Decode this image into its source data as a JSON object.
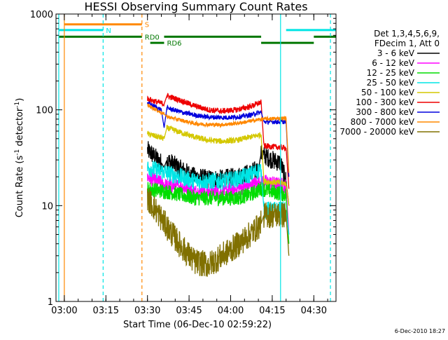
{
  "chart_data": {
    "type": "line",
    "title": "HESSI Observing Summary Count Rates",
    "xlabel": "Start Time (06-Dec-10 02:59:22)",
    "ylabel_main": "Count Rate (s",
    "ylabel_sup1": "-1",
    "ylabel_mid": " detector",
    "ylabel_sup2": "-1",
    "ylabel_end": ")",
    "date_stamp": "6-Dec-2010 18:27",
    "y_scale": "log",
    "ylim": [
      1,
      1000
    ],
    "xlim": [
      "02:57",
      "04:38"
    ],
    "y_ticks": [
      {
        "value": 1,
        "label": "1"
      },
      {
        "value": 10,
        "label": "10"
      },
      {
        "value": 100,
        "label": "100"
      },
      {
        "value": 1000,
        "label": "1000"
      }
    ],
    "x_ticks": [
      {
        "t": "03:00",
        "label": "03:00"
      },
      {
        "t": "03:15",
        "label": "03:15"
      },
      {
        "t": "03:30",
        "label": "03:30"
      },
      {
        "t": "03:45",
        "label": "03:45"
      },
      {
        "t": "04:00",
        "label": "04:00"
      },
      {
        "t": "04:15",
        "label": "04:15"
      },
      {
        "t": "04:30",
        "label": "04:30"
      }
    ],
    "legend": {
      "header": [
        "Det 1,3,4,5,6,9,",
        "FDecim 1, Att 0"
      ],
      "entries": [
        {
          "label": "3 - 6 keV",
          "color": "#000000"
        },
        {
          "label": "6 - 12 keV",
          "color": "#ff00ff"
        },
        {
          "label": "12 - 25 keV",
          "color": "#00dd00"
        },
        {
          "label": "25 - 50 keV",
          "color": "#00e5e5"
        },
        {
          "label": "50 - 100 keV",
          "color": "#d4c800"
        },
        {
          "label": "100 - 300 keV",
          "color": "#ee0000"
        },
        {
          "label": "300 - 800 keV",
          "color": "#0000dd"
        },
        {
          "label": "800 - 7000 keV",
          "color": "#ff8800"
        },
        {
          "label": "7000 - 20000 keV",
          "color": "#807000"
        }
      ]
    },
    "flag_lines": [
      {
        "label": "S",
        "color": "#ff8800",
        "y": 780,
        "t0": "03:00",
        "t1": "03:28"
      },
      {
        "label": "N",
        "color": "#00e5e5",
        "y": 680,
        "t0": "02:58",
        "t1": "03:14"
      },
      {
        "label": "",
        "color": "#00e5e5",
        "y": 680,
        "t0": "04:20",
        "t1": "04:38"
      },
      {
        "label": "RD0",
        "color": "#007700",
        "y": 580,
        "t0": "02:58",
        "t1": "03:28"
      },
      {
        "label": "",
        "color": "#007700",
        "y": 580,
        "t0": "03:36",
        "t1": "04:11"
      },
      {
        "label": "",
        "color": "#007700",
        "y": 580,
        "t0": "04:30",
        "t1": "04:38"
      },
      {
        "label": "RD6",
        "color": "#007700",
        "y": 500,
        "t0": "03:31",
        "t1": "03:36"
      },
      {
        "label": "",
        "color": "#007700",
        "y": 500,
        "t0": "04:11",
        "t1": "04:30"
      }
    ],
    "vlines": [
      {
        "t": "02:58",
        "color": "#00e5e5",
        "style": "solid"
      },
      {
        "t": "03:00",
        "color": "#ff8800",
        "style": "solid"
      },
      {
        "t": "03:14",
        "color": "#00e5e5",
        "style": "dashed"
      },
      {
        "t": "03:28",
        "color": "#ff8800",
        "style": "dashed"
      },
      {
        "t": "04:18",
        "color": "#00e5e5",
        "style": "solid"
      },
      {
        "t": "04:36",
        "color": "#00e5e5",
        "style": "dashed"
      }
    ],
    "series": [
      {
        "name": "3 - 6 keV",
        "color": "#000000",
        "noise": 0.1,
        "points": [
          [
            "03:30",
            38
          ],
          [
            "03:35",
            28
          ],
          [
            "03:36",
            25
          ],
          [
            "03:37",
            30
          ],
          [
            "03:42",
            24
          ],
          [
            "03:47",
            20
          ],
          [
            "03:52",
            19
          ],
          [
            "03:57",
            19
          ],
          [
            "04:02",
            20
          ],
          [
            "04:07",
            22
          ],
          [
            "04:10",
            24
          ],
          [
            "04:11",
            35
          ],
          [
            "04:15",
            30
          ],
          [
            "04:18",
            28
          ],
          [
            "04:20",
            18
          ],
          [
            "04:21",
            10
          ]
        ]
      },
      {
        "name": "6 - 12 keV",
        "color": "#ff00ff",
        "noise": 0.08,
        "points": [
          [
            "03:30",
            20
          ],
          [
            "03:37",
            16
          ],
          [
            "03:42",
            16
          ],
          [
            "03:47",
            14
          ],
          [
            "03:52",
            14
          ],
          [
            "03:57",
            14
          ],
          [
            "04:02",
            15
          ],
          [
            "04:07",
            16
          ],
          [
            "04:11",
            18
          ],
          [
            "04:15",
            17
          ],
          [
            "04:20",
            16
          ],
          [
            "04:21",
            5
          ]
        ]
      },
      {
        "name": "12 - 25 keV",
        "color": "#00dd00",
        "noise": 0.08,
        "points": [
          [
            "03:30",
            15
          ],
          [
            "03:37",
            14
          ],
          [
            "03:42",
            13
          ],
          [
            "03:47",
            12
          ],
          [
            "03:52",
            12
          ],
          [
            "03:57",
            12
          ],
          [
            "04:02",
            12
          ],
          [
            "04:07",
            13
          ],
          [
            "04:11",
            15
          ],
          [
            "04:15",
            14
          ],
          [
            "04:20",
            13
          ],
          [
            "04:21",
            4
          ]
        ]
      },
      {
        "name": "25 - 50 keV",
        "color": "#00e5e5",
        "noise": 0.09,
        "points": [
          [
            "03:30",
            25
          ],
          [
            "03:37",
            22
          ],
          [
            "03:42",
            20
          ],
          [
            "03:47",
            18
          ],
          [
            "03:52",
            18
          ],
          [
            "03:57",
            18
          ],
          [
            "04:02",
            19
          ],
          [
            "04:07",
            21
          ],
          [
            "04:11",
            24
          ],
          [
            "04:12",
            9
          ],
          [
            "04:20",
            9
          ],
          [
            "04:21",
            5
          ]
        ]
      },
      {
        "name": "50 - 100 keV",
        "color": "#d4c800",
        "noise": 0.03,
        "points": [
          [
            "03:30",
            56
          ],
          [
            "03:36",
            50
          ],
          [
            "03:37",
            65
          ],
          [
            "03:42",
            58
          ],
          [
            "03:47",
            52
          ],
          [
            "03:52",
            48
          ],
          [
            "03:57",
            47
          ],
          [
            "04:02",
            48
          ],
          [
            "04:07",
            52
          ],
          [
            "04:11",
            55
          ],
          [
            "04:12",
            18
          ],
          [
            "04:20",
            17
          ],
          [
            "04:21",
            10
          ]
        ]
      },
      {
        "name": "100 - 300 keV",
        "color": "#ee0000",
        "noise": 0.03,
        "points": [
          [
            "03:30",
            130
          ],
          [
            "03:36",
            115
          ],
          [
            "03:37",
            140
          ],
          [
            "03:42",
            125
          ],
          [
            "03:47",
            110
          ],
          [
            "03:52",
            100
          ],
          [
            "03:57",
            97
          ],
          [
            "04:02",
            100
          ],
          [
            "04:07",
            108
          ],
          [
            "04:11",
            120
          ],
          [
            "04:12",
            42
          ],
          [
            "04:20",
            40
          ],
          [
            "04:21",
            15
          ]
        ]
      },
      {
        "name": "300 - 800 keV",
        "color": "#0000dd",
        "noise": 0.025,
        "points": [
          [
            "03:30",
            118
          ],
          [
            "03:35",
            100
          ],
          [
            "03:36",
            65
          ],
          [
            "03:37",
            105
          ],
          [
            "03:42",
            95
          ],
          [
            "03:47",
            88
          ],
          [
            "03:52",
            84
          ],
          [
            "03:57",
            83
          ],
          [
            "04:02",
            84
          ],
          [
            "04:07",
            88
          ],
          [
            "04:11",
            95
          ],
          [
            "04:12",
            75
          ],
          [
            "04:20",
            75
          ],
          [
            "04:21",
            20
          ]
        ]
      },
      {
        "name": "800 - 7000 keV",
        "color": "#ff8800",
        "noise": 0.02,
        "points": [
          [
            "03:30",
            112
          ],
          [
            "03:36",
            90
          ],
          [
            "03:37",
            85
          ],
          [
            "03:42",
            78
          ],
          [
            "03:47",
            72
          ],
          [
            "03:52",
            70
          ],
          [
            "03:57",
            70
          ],
          [
            "04:02",
            72
          ],
          [
            "04:07",
            76
          ],
          [
            "04:11",
            80
          ],
          [
            "04:20",
            82
          ],
          [
            "04:21",
            22
          ]
        ]
      },
      {
        "name": "7000 - 20000 keV",
        "color": "#807000",
        "noise": 0.14,
        "points": [
          [
            "03:30",
            12
          ],
          [
            "03:33",
            9
          ],
          [
            "03:37",
            6
          ],
          [
            "03:42",
            3.8
          ],
          [
            "03:47",
            2.6
          ],
          [
            "03:52",
            2.4
          ],
          [
            "03:57",
            3
          ],
          [
            "04:02",
            3.8
          ],
          [
            "04:07",
            5
          ],
          [
            "04:11",
            6.5
          ],
          [
            "04:12",
            8
          ],
          [
            "04:20",
            8
          ],
          [
            "04:21",
            3
          ]
        ]
      }
    ]
  }
}
